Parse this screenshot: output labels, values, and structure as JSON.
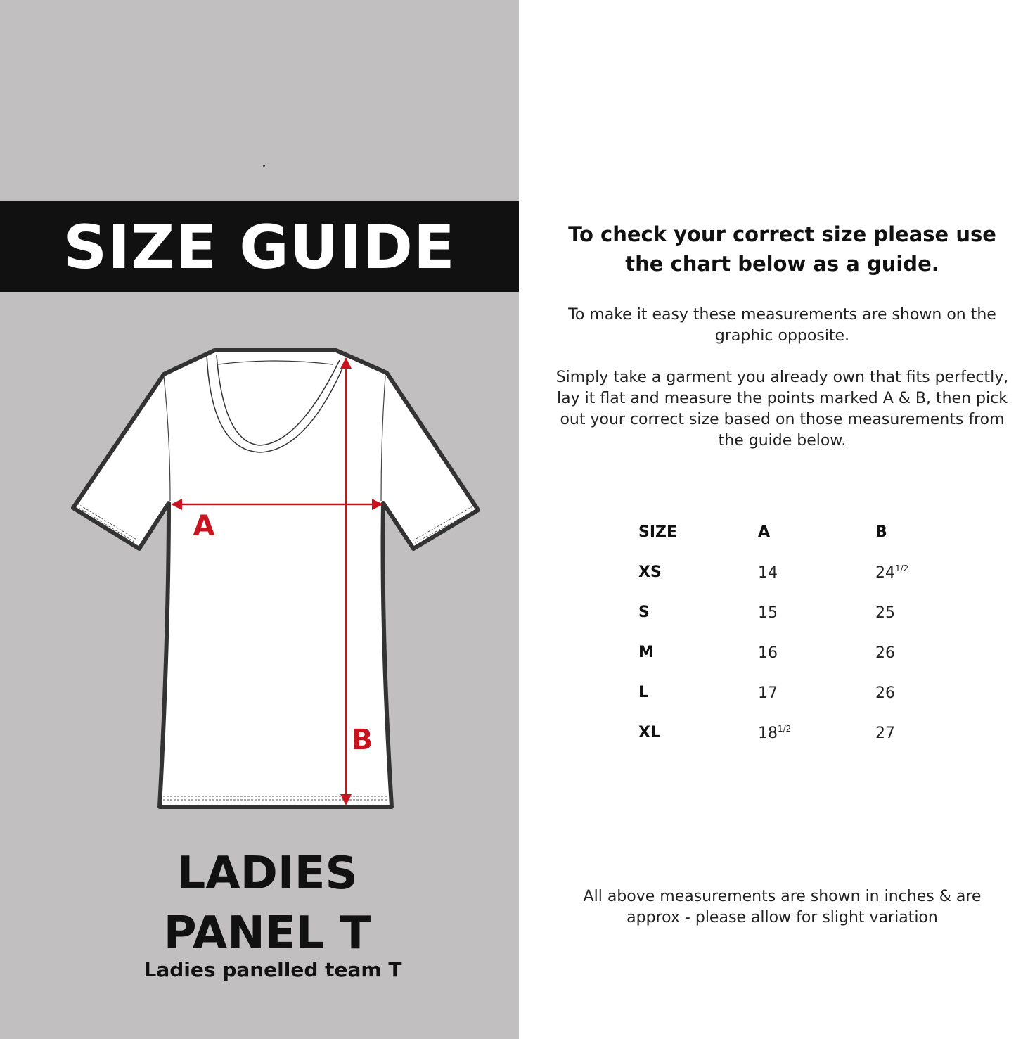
{
  "title": "SIZE GUIDE",
  "product": {
    "line1": "LADIES",
    "line2": "PANEL T",
    "subtitle": "Ladies panelled team T"
  },
  "diagram": {
    "label_a": "A",
    "label_b": "B",
    "arrow_color": "#c8141e"
  },
  "intro": {
    "heading": "To check your correct size please use the chart below as a guide.",
    "paragraph1": "To make it easy these measurements are shown on the graphic opposite.",
    "paragraph2": "Simply take a garment you already own that fits perfectly, lay it flat and measure the points marked A & B, then pick out your correct size based on those measurements from the guide below."
  },
  "table": {
    "headers": [
      "SIZE",
      "A",
      "B"
    ],
    "rows": [
      {
        "size": "XS",
        "a": "14",
        "a_frac": "",
        "b": "24",
        "b_frac": "1/2"
      },
      {
        "size": "S",
        "a": "15",
        "a_frac": "",
        "b": "25",
        "b_frac": ""
      },
      {
        "size": "M",
        "a": "16",
        "a_frac": "",
        "b": "26",
        "b_frac": ""
      },
      {
        "size": "L",
        "a": "17",
        "a_frac": "",
        "b": "26",
        "b_frac": ""
      },
      {
        "size": "XL",
        "a": "18",
        "a_frac": "1/2",
        "b": "27",
        "b_frac": ""
      }
    ]
  },
  "footnote": "All above measurements are shown in inches & are approx - please allow for slight variation"
}
